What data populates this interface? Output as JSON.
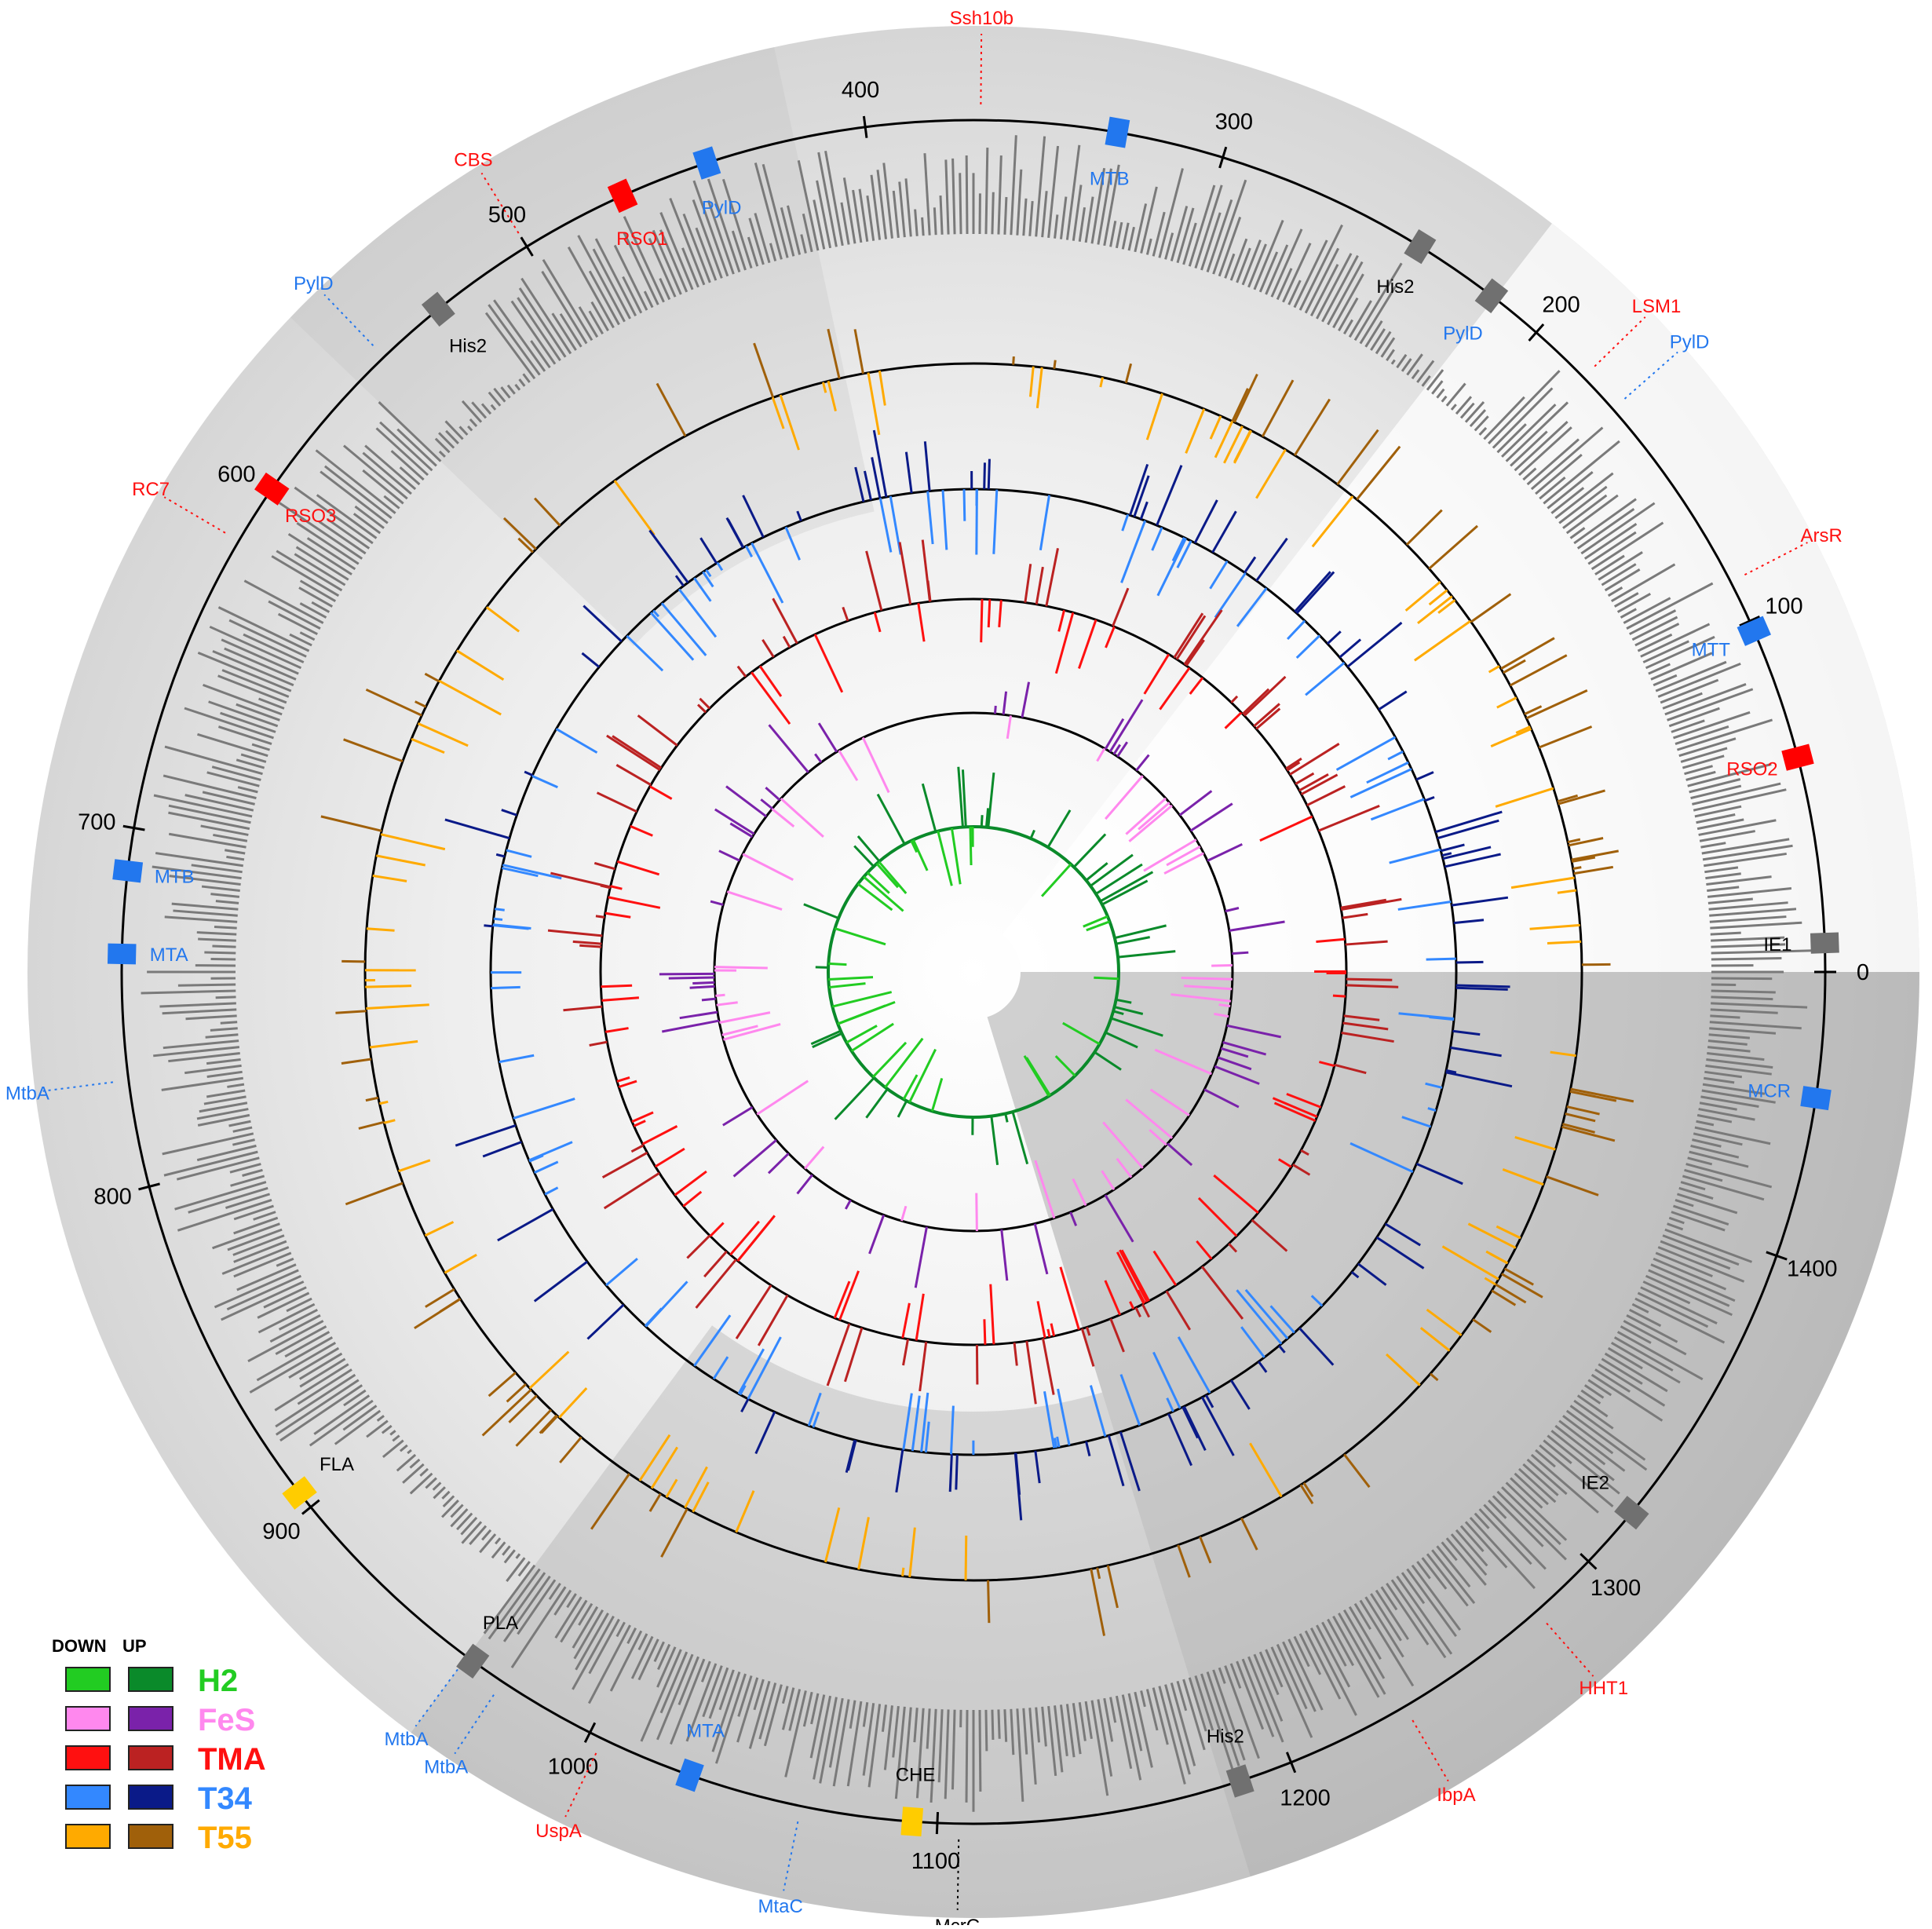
{
  "genome": {
    "max_kb": 1480
  },
  "ticks": [
    "0",
    "100",
    "200",
    "300",
    "400",
    "500",
    "600",
    "700",
    "800",
    "900",
    "1000",
    "1100",
    "1200",
    "1300",
    "1400"
  ],
  "features": [
    {
      "kb": 8,
      "label": "IE1",
      "color": "#000000",
      "block": true,
      "blockColor": "#707070"
    },
    {
      "kb": 60,
      "label": "RSO2",
      "color": "#ff1010",
      "block": true,
      "blockColor": "#ff0000"
    },
    {
      "kb": 97,
      "label": "MTT",
      "color": "#2277ee",
      "block": true,
      "blockColor": "#2277ee"
    },
    {
      "kb": 112,
      "label": "ArsR",
      "color": "#ff1010",
      "dotted": true
    },
    {
      "kb": 170,
      "label": "PylD",
      "color": "#2277ee",
      "dotted": true
    },
    {
      "kb": 182,
      "label": "LSM1",
      "color": "#ff1010",
      "dotted": true
    },
    {
      "kb": 216,
      "label": "PylD",
      "color": "#2277ee",
      "block": true,
      "blockColor": "#707070"
    },
    {
      "kb": 240,
      "label": "His2",
      "color": "#000000",
      "block": true,
      "blockColor": "#707070"
    },
    {
      "kb": 330,
      "label": "MTB",
      "color": "#2277ee",
      "block": true,
      "blockColor": "#2277ee"
    },
    {
      "kb": 368,
      "label": "Ssh10b",
      "color": "#ff1010",
      "dotted": true
    },
    {
      "kb": 445,
      "label": "PylD",
      "color": "#2277ee",
      "block": true,
      "blockColor": "#2277ee"
    },
    {
      "kb": 470,
      "label": "RSO1",
      "color": "#ff1010",
      "block": true,
      "blockColor": "#ff0000"
    },
    {
      "kb": 500,
      "label": "CBS",
      "color": "#ff1010",
      "dotted": true
    },
    {
      "kb": 530,
      "label": "His2",
      "color": "#000000",
      "block": true,
      "blockColor": "#707070"
    },
    {
      "kb": 550,
      "label": "PylD",
      "color": "#2277ee",
      "dotted": true
    },
    {
      "kb": 598,
      "label": "RSO3",
      "color": "#ff1010",
      "block": true,
      "blockColor": "#ff0000"
    },
    {
      "kb": 615,
      "label": "RC7",
      "color": "#ff1010",
      "dotted": true
    },
    {
      "kb": 712,
      "label": "MTB",
      "color": "#2277ee",
      "block": true,
      "blockColor": "#2277ee"
    },
    {
      "kb": 735,
      "label": "MTA",
      "color": "#2277ee",
      "block": true,
      "blockColor": "#2277ee"
    },
    {
      "kb": 770,
      "label": "MtbA",
      "color": "#2277ee",
      "dotted": true
    },
    {
      "kb": 895,
      "label": "FLA",
      "color": "#000000",
      "block": true,
      "blockColor": "#ffcc00"
    },
    {
      "kb": 962,
      "label": "PLA",
      "color": "#000000",
      "block": true,
      "blockColor": "#707070"
    },
    {
      "kb": 960,
      "label": "MtbA",
      "color": "#2277ee",
      "dotted": true
    },
    {
      "kb": 972,
      "label": "MtbA",
      "color": "#2277ee",
      "dotted": true
    },
    {
      "kb": 1004,
      "label": "UspA",
      "color": "#ff1010",
      "dotted": true
    },
    {
      "kb": 1030,
      "label": "MTA",
      "color": "#2277ee",
      "block": true,
      "blockColor": "#2277ee"
    },
    {
      "kb": 1062,
      "label": "MtaC",
      "color": "#2277ee",
      "dotted": true
    },
    {
      "kb": 1093,
      "label": "CHE",
      "color": "#000000",
      "block": true,
      "blockColor": "#ffcc00"
    },
    {
      "kb": 1106,
      "label": "McrC",
      "color": "#000000",
      "dotted": true
    },
    {
      "kb": 1185,
      "label": "His2",
      "color": "#000000",
      "block": true,
      "blockColor": "#707070"
    },
    {
      "kb": 1235,
      "label": "IbpA",
      "color": "#ff1010",
      "dotted": true
    },
    {
      "kb": 1280,
      "label": "HHT1",
      "color": "#ff1010",
      "dotted": true
    },
    {
      "kb": 1318,
      "label": "IE2",
      "color": "#000000",
      "block": true,
      "blockColor": "#707070"
    },
    {
      "kb": 1445,
      "label": "MCR",
      "color": "#2277ee",
      "block": true,
      "blockColor": "#2277ee"
    }
  ],
  "legend": {
    "down_label": "DOWN",
    "up_label": "UP",
    "items": [
      {
        "name": "H2",
        "down": "#22cc22",
        "up": "#0a8a2a",
        "text": "#22cc22"
      },
      {
        "name": "FeS",
        "down": "#ff88ee",
        "up": "#7a22aa",
        "text": "#ff88ee"
      },
      {
        "name": "TMA",
        "down": "#ff1010",
        "up": "#bb2222",
        "text": "#ff1010"
      },
      {
        "name": "T34",
        "down": "#3388ff",
        "up": "#0a1a88",
        "text": "#3388ff"
      },
      {
        "name": "T55",
        "down": "#ffaa00",
        "up": "#a0600a",
        "text": "#ffaa00"
      }
    ]
  },
  "colors": {
    "histogram": "#7a7a7a",
    "H2_up": "#0a8a2a",
    "H2_down": "#22cc22",
    "FeS_up": "#7a22aa",
    "FeS_down": "#ff88ee",
    "TMA_up": "#bb2222",
    "TMA_down": "#ff1010",
    "T34_up": "#0a1a88",
    "T34_down": "#3388ff",
    "T55_up": "#a0600a",
    "T55_down": "#ffaa00"
  }
}
